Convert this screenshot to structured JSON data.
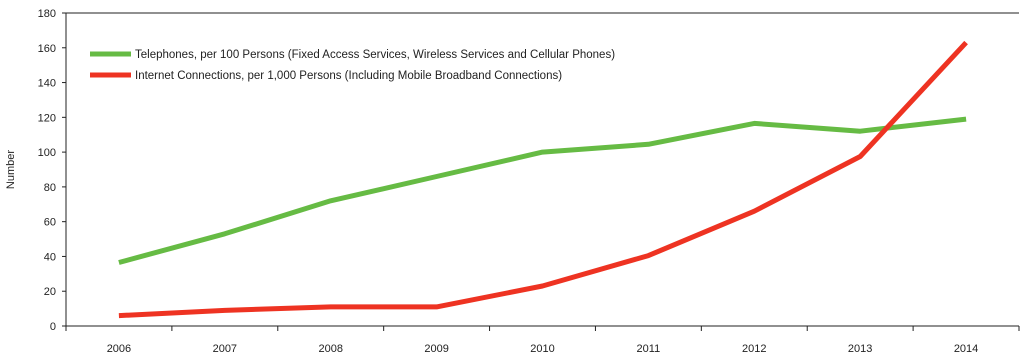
{
  "chart_data": {
    "type": "line",
    "categories": [
      "2006",
      "2007",
      "2008",
      "2009",
      "2010",
      "2011",
      "2012",
      "2013",
      "2014"
    ],
    "ylabel": "Number",
    "xlabel": "",
    "ylim": [
      0,
      180
    ],
    "yticks": [
      "0",
      "20",
      "40",
      "60",
      "80",
      "100",
      "120",
      "140",
      "160",
      "180"
    ],
    "grid": false,
    "legend_position": "top-left",
    "series": [
      {
        "name": "Telephones, per 100 Persons (Fixed Access Services, Wireless Services and Cellular Phones)",
        "color": "#66bb44",
        "values": [
          36.5,
          53,
          72,
          86,
          100,
          104.5,
          116.5,
          112,
          119
        ]
      },
      {
        "name": "Internet Connections, per 1,000 Persons (Including Mobile Broadband Connections)",
        "color": "#ee3322",
        "values": [
          6,
          9,
          11,
          11,
          23,
          40.5,
          66,
          97.5,
          163
        ]
      }
    ]
  }
}
